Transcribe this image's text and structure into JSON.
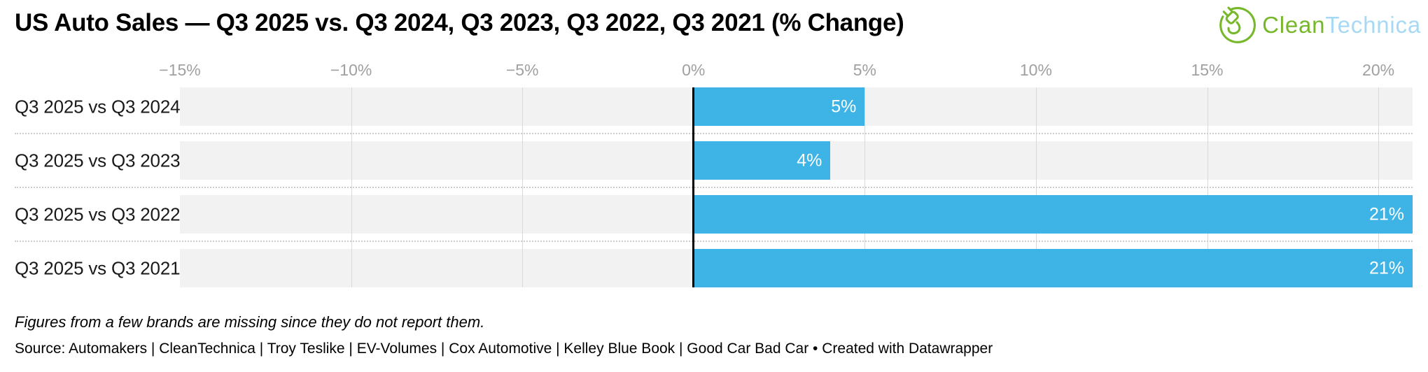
{
  "header": {
    "title": "US Auto Sales — Q3 2025 vs. Q3 2024, Q3 2023, Q3 2022, Q3 2021 (% Change)"
  },
  "logo": {
    "brand": "CleanTechnica",
    "text_primary": "Clean",
    "text_secondary": "Technica",
    "color_primary": "#76b82a",
    "color_secondary": "#a7d9f4",
    "icon": "plug-circle-icon"
  },
  "chart_data": {
    "type": "bar",
    "orientation": "horizontal",
    "title": "US Auto Sales — Q3 2025 vs. Q3 2024, Q3 2023, Q3 2022, Q3 2021 (% Change)",
    "categories": [
      "Q3 2025 vs Q3 2024",
      "Q3 2025 vs Q3 2023",
      "Q3 2025 vs Q3 2022",
      "Q3 2025 vs Q3 2021"
    ],
    "values": [
      5,
      4,
      21,
      21
    ],
    "value_labels": [
      "5%",
      "4%",
      "21%",
      "21%"
    ],
    "xlabel": "",
    "ylabel": "",
    "xlim": [
      -15,
      21
    ],
    "ticks": [
      -15,
      -10,
      -5,
      0,
      5,
      10,
      15,
      20
    ],
    "tick_labels": [
      "−15%",
      "−10%",
      "−5%",
      "0%",
      "5%",
      "10%",
      "15%",
      "20%"
    ],
    "grid": true,
    "legend": "none",
    "colors": {
      "bar": "#3db4e5",
      "row_bg": "#f2f2f2",
      "gridline": "#d9d9d9",
      "zero_line": "#000000",
      "tick_text": "#a0a0a0",
      "category_text": "#1a1a1a",
      "value_text": "#ffffff",
      "separator": "#cccccc"
    }
  },
  "footer": {
    "note": "Figures from a few brands are missing since they do not report them.",
    "source": "Source: Automakers | CleanTechnica | Troy Teslike | EV-Volumes | Cox Automotive | Kelley Blue Book | Good Car Bad Car • Created with Datawrapper"
  }
}
